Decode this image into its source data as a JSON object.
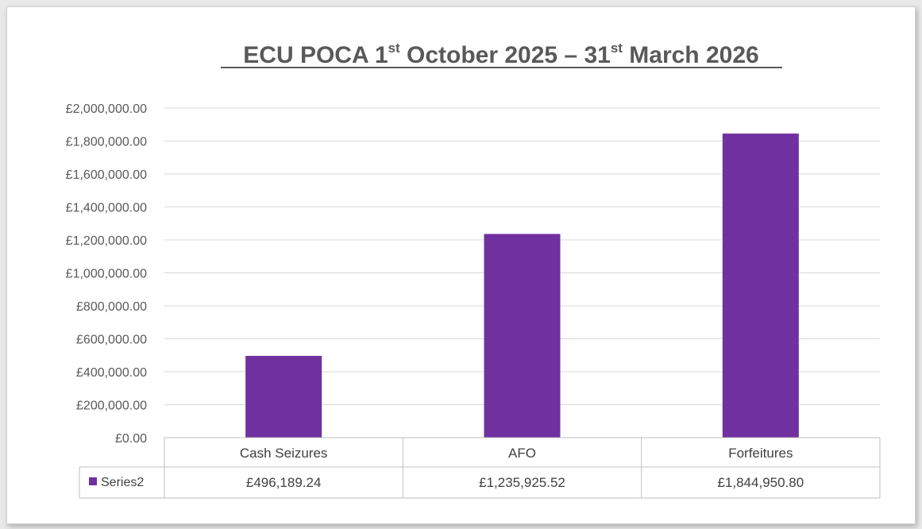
{
  "chart_data": {
    "type": "bar",
    "title": {
      "part1": "ECU POCA 1",
      "sup1": "st",
      "part2": " October 2025 – 31",
      "sup2": "st",
      "part3": " March 2026"
    },
    "categories": [
      "Cash Seizures",
      "AFO",
      "Forfeitures"
    ],
    "series": [
      {
        "name": "Series2",
        "values": [
          496189.24,
          1235925.52,
          1844950.8
        ],
        "value_labels": [
          "£496,189.24",
          "£1,235,925.52",
          "£1,844,950.80"
        ],
        "color": "#7030a0"
      }
    ],
    "y_ticks": [
      "£0.00",
      "£200,000.00",
      "£400,000.00",
      "£600,000.00",
      "£800,000.00",
      "£1,000,000.00",
      "£1,200,000.00",
      "£1,400,000.00",
      "£1,600,000.00",
      "£1,800,000.00",
      "£2,000,000.00"
    ],
    "ylim": [
      0,
      2000000
    ],
    "grid": true,
    "legend": "data-table"
  }
}
